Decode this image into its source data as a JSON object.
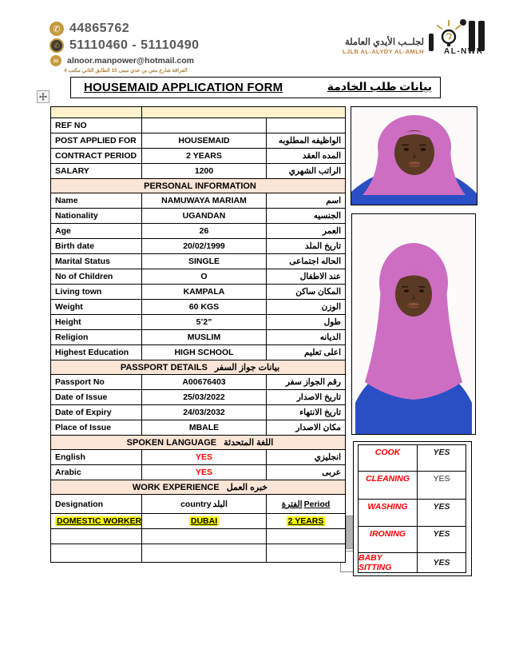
{
  "header": {
    "phone1": "44865762",
    "phone2": "51110460 - 51110490",
    "email": "alnoor.manpower@hotmail.com",
    "address_ar": "الفراقة شارع معن بن عدي مبنى 10 الطابق الثاني مكتب 4",
    "icons": {
      "phone": "✆",
      "email": "✉"
    },
    "logo": {
      "company_ar": "لجلــب الأيدي العاملة",
      "company_en": "LJLB AL-ALYDY AL-AMLH",
      "brand": "AL-NWR"
    }
  },
  "title": {
    "en": "HOUSEMAID APPLICATION FORM",
    "ar": "بيانات طلب الخادمة"
  },
  "form": {
    "rows": [
      {
        "k": "top",
        "cells": [
          {
            "t": ""
          },
          {
            "t": ""
          }
        ]
      },
      {
        "k": "row",
        "cells": [
          {
            "t": "REF NO"
          },
          {
            "t": ""
          },
          {
            "t": ""
          }
        ]
      },
      {
        "k": "row",
        "cells": [
          {
            "t": "POST APPLIED FOR"
          },
          {
            "t": "HOUSEMAID"
          },
          {
            "t": "الواظيفه المطلوبه"
          }
        ]
      },
      {
        "k": "row",
        "cells": [
          {
            "t": "CONTRACT PERIOD"
          },
          {
            "t": "2 YEARS"
          },
          {
            "t": "المده العقد"
          }
        ]
      },
      {
        "k": "row",
        "cells": [
          {
            "t": "SALARY"
          },
          {
            "t": "1200"
          },
          {
            "t": "الراتب الشهري"
          }
        ]
      },
      {
        "k": "sec",
        "cells": [
          {
            "t": "PERSONAL INFORMATION"
          }
        ]
      },
      {
        "k": "row",
        "cells": [
          {
            "t": "Name"
          },
          {
            "t": "NAMUWAYA MARIAM"
          },
          {
            "t": "اسم"
          }
        ]
      },
      {
        "k": "row",
        "cells": [
          {
            "t": "Nationality"
          },
          {
            "t": "UGANDAN"
          },
          {
            "t": "الجنسيه"
          }
        ]
      },
      {
        "k": "row",
        "cells": [
          {
            "t": "Age"
          },
          {
            "t": "26"
          },
          {
            "t": "العمر"
          }
        ]
      },
      {
        "k": "row",
        "cells": [
          {
            "t": "Birth date"
          },
          {
            "t": "20/02/1999"
          },
          {
            "t": "تاريخ الملد"
          }
        ]
      },
      {
        "k": "row",
        "cells": [
          {
            "t": "Marital Status"
          },
          {
            "t": "SINGLE"
          },
          {
            "t": "الحاله اجتماعى"
          }
        ]
      },
      {
        "k": "row",
        "cells": [
          {
            "t": "No of Children"
          },
          {
            "t": "O"
          },
          {
            "t": "عند الاطفال"
          }
        ]
      },
      {
        "k": "row",
        "cells": [
          {
            "t": "Living town"
          },
          {
            "t": "KAMPALA"
          },
          {
            "t": "المكان ساكن"
          }
        ]
      },
      {
        "k": "row",
        "cells": [
          {
            "t": "Weight"
          },
          {
            "t": "60 KGS"
          },
          {
            "t": "الوزن"
          }
        ]
      },
      {
        "k": "row",
        "cells": [
          {
            "t": "Height"
          },
          {
            "t": "5’2”"
          },
          {
            "t": "طول"
          }
        ]
      },
      {
        "k": "row",
        "cells": [
          {
            "t": "Religion"
          },
          {
            "t": "MUSLIM"
          },
          {
            "t": "الديانه"
          }
        ]
      },
      {
        "k": "row",
        "cells": [
          {
            "t": "Highest Education"
          },
          {
            "t": "HIGH SCHOOL"
          },
          {
            "t": "اعلى تعليم"
          }
        ]
      },
      {
        "k": "sec",
        "cells": [
          {
            "t": "PASSPORT DETAILS",
            "t2": "بيانات جواز السفر"
          }
        ]
      },
      {
        "k": "row",
        "cells": [
          {
            "t": "Passport No"
          },
          {
            "t": "A00676403"
          },
          {
            "t": "رقم الجواز سفر"
          }
        ]
      },
      {
        "k": "row",
        "cells": [
          {
            "t": "Date of Issue"
          },
          {
            "t": "25/03/2022"
          },
          {
            "t": "تاريخ الاصدار"
          }
        ]
      },
      {
        "k": "row",
        "cells": [
          {
            "t": "Date of Expiry"
          },
          {
            "t": "24/03/2032"
          },
          {
            "t": "تاريخ الانتهاء"
          }
        ]
      },
      {
        "k": "row",
        "cells": [
          {
            "t": "Place of Issue"
          },
          {
            "t": "MBALE"
          },
          {
            "t": "مكان الاصدار"
          }
        ]
      },
      {
        "k": "sec",
        "cells": [
          {
            "t": "SPOKEN LANGUAGE",
            "t2": "اللغة المتحدثة"
          }
        ]
      },
      {
        "k": "row",
        "cells": [
          {
            "t": "English"
          },
          {
            "t": "YES",
            "red": 1
          },
          {
            "t": "انجليزي"
          }
        ]
      },
      {
        "k": "row",
        "cells": [
          {
            "t": "Arabic"
          },
          {
            "t": "YES",
            "red": 1
          },
          {
            "t": "عربى"
          }
        ]
      },
      {
        "k": "sec",
        "cells": [
          {
            "t": "WORK EXPERIENCE",
            "t2": "خبره العمل"
          }
        ]
      },
      {
        "k": "exp",
        "cells": [
          {
            "t": "Designation"
          },
          {
            "t": "country",
            "t2": "البلد"
          },
          {
            "t": "الفترة",
            "t2": "Period",
            "u": 1
          }
        ]
      },
      {
        "k": "row",
        "cells": [
          {
            "t": "DOMESTIC WORKER",
            "hl": 1
          },
          {
            "t": "DUBAI",
            "hl": 1
          },
          {
            "t": "2 YEARS",
            "hl": 1
          }
        ]
      },
      {
        "k": "row",
        "cells": [
          {
            "t": ""
          },
          {
            "t": ""
          },
          {
            "t": ""
          }
        ]
      },
      {
        "k": "last",
        "cells": [
          {
            "t": ""
          },
          {
            "t": ""
          },
          {
            "t": ""
          }
        ]
      }
    ]
  },
  "skills": {
    "rows": [
      {
        "name": "COOK",
        "value": "YES"
      },
      {
        "name": "CLEANING",
        "value": "YES"
      },
      {
        "name": "WASHING",
        "value": "YES"
      },
      {
        "name": "IRONING",
        "value": "YES"
      },
      {
        "name": "BABY SITTING",
        "value": "YES"
      }
    ]
  },
  "colors": {
    "cream": "#FFF2CC",
    "peach": "#FBE5D6",
    "highlight": "#FFFF00",
    "red": "#FF0000",
    "logo_orange": "#C4813C",
    "gold": "#C49A3C",
    "hijab_pink": "#CD6EC3",
    "shirt_blue": "#2A4FC4"
  }
}
